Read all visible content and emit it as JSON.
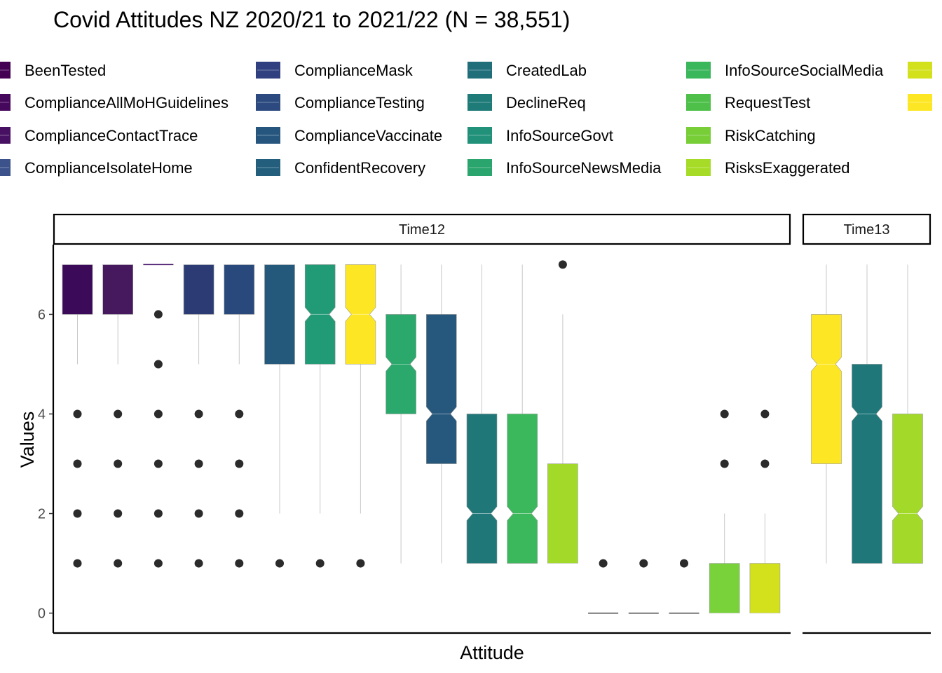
{
  "chart_data": {
    "type": "boxplot",
    "title": "Covid Attitudes NZ 2020/21 to 2021/22 (N = 38,551)",
    "xlabel": "Attitude",
    "ylabel": "Values",
    "ylim": [
      -0.4,
      7.4
    ],
    "yticks": [
      0,
      2,
      4,
      6
    ],
    "legend_position": "top",
    "legend": [
      {
        "name": "BeenTested",
        "color": "#440154"
      },
      {
        "name": "ComplianceAllMoHGuidelines",
        "color": "#46085c"
      },
      {
        "name": "ComplianceContactTrace",
        "color": "#471063"
      },
      {
        "name": "ComplianceIsolateHome",
        "color": "#3b528b"
      },
      {
        "name": "ComplianceMask",
        "color": "#2f3f7f"
      },
      {
        "name": "ComplianceTesting",
        "color": "#2c4a80"
      },
      {
        "name": "ComplianceVaccinate",
        "color": "#26567e"
      },
      {
        "name": "ConfidentRecovery",
        "color": "#235f7d"
      },
      {
        "name": "CreatedLab",
        "color": "#1f6e7a"
      },
      {
        "name": "DeclineReq",
        "color": "#1e7b78"
      },
      {
        "name": "InfoSourceGovt",
        "color": "#21917a"
      },
      {
        "name": "InfoSourceNewsMedia",
        "color": "#2aa56d"
      },
      {
        "name": "InfoSourceSocialMedia",
        "color": "#3ab65b"
      },
      {
        "name": "RequestTest",
        "color": "#4ec04a"
      },
      {
        "name": "RiskCatching",
        "color": "#77ce37"
      },
      {
        "name": "RisksExaggerated",
        "color": "#a6dc27"
      },
      {
        "name": "",
        "color": "#d2e11c"
      },
      {
        "name": "",
        "color": "#fde725"
      }
    ],
    "panels": [
      {
        "label": "Time12",
        "boxes": [
          {
            "color": "#3b0a58",
            "q1": 6,
            "median": 7,
            "q3": 7,
            "lower": 5,
            "upper": 7,
            "outliers": [
              4,
              3,
              2,
              1
            ]
          },
          {
            "color": "#46195f",
            "q1": 6,
            "median": 7,
            "q3": 7,
            "lower": 5,
            "upper": 7,
            "outliers": [
              4,
              3,
              2,
              1
            ]
          },
          {
            "color": "#47156b",
            "q1": 7,
            "median": 7,
            "q3": 7,
            "lower": 7,
            "upper": 7,
            "outliers": [
              6,
              5,
              4,
              3,
              2,
              1
            ]
          },
          {
            "color": "#2d3b75",
            "q1": 6,
            "median": 7,
            "q3": 7,
            "lower": 5,
            "upper": 7,
            "outliers": [
              4,
              3,
              2,
              1
            ]
          },
          {
            "color": "#29497d",
            "q1": 6,
            "median": 7,
            "q3": 7,
            "lower": 5,
            "upper": 7,
            "outliers": [
              4,
              3,
              2,
              1
            ]
          },
          {
            "color": "#24597b",
            "q1": 5,
            "median": 7,
            "q3": 7,
            "lower": 2,
            "upper": 7,
            "outliers": [
              1
            ]
          },
          {
            "color": "#219b75",
            "q1": 5,
            "median": 6,
            "q3": 7,
            "lower": 2,
            "upper": 7,
            "outliers": [
              1
            ]
          },
          {
            "color": "#fde725",
            "q1": 5,
            "median": 6,
            "q3": 7,
            "lower": 2,
            "upper": 7,
            "outliers": [
              1
            ]
          },
          {
            "color": "#2ba96c",
            "q1": 4,
            "median": 5,
            "q3": 6,
            "lower": 1,
            "upper": 7,
            "outliers": []
          },
          {
            "color": "#26577c",
            "q1": 3,
            "median": 4,
            "q3": 6,
            "lower": 1,
            "upper": 7,
            "outliers": []
          },
          {
            "color": "#1f7778",
            "q1": 1,
            "median": 2,
            "q3": 4,
            "lower": 1,
            "upper": 7,
            "outliers": []
          },
          {
            "color": "#3bb85c",
            "q1": 1,
            "median": 2,
            "q3": 4,
            "lower": 1,
            "upper": 7,
            "outliers": []
          },
          {
            "color": "#a3da2a",
            "q1": 1,
            "median": 1,
            "q3": 3,
            "lower": 1,
            "upper": 6,
            "outliers": [
              7
            ]
          },
          {
            "color": "#444444",
            "q1": 0,
            "median": 0,
            "q3": 0,
            "lower": 0,
            "upper": 0,
            "outliers": [
              1
            ]
          },
          {
            "color": "#444444",
            "q1": 0,
            "median": 0,
            "q3": 0,
            "lower": 0,
            "upper": 0,
            "outliers": [
              1
            ]
          },
          {
            "color": "#444444",
            "q1": 0,
            "median": 0,
            "q3": 0,
            "lower": 0,
            "upper": 0,
            "outliers": [
              1
            ]
          },
          {
            "color": "#7ad23b",
            "q1": 0,
            "median": 0,
            "q3": 1,
            "lower": 0,
            "upper": 2,
            "outliers": [
              4,
              3
            ]
          },
          {
            "color": "#d2e11c",
            "q1": 0,
            "median": 0,
            "q3": 1,
            "lower": 0,
            "upper": 2,
            "outliers": [
              4,
              3
            ]
          }
        ]
      },
      {
        "label": "Time13",
        "boxes": [
          {
            "color": "#fde725",
            "q1": 3,
            "median": 5,
            "q3": 6,
            "lower": 1,
            "upper": 7,
            "outliers": []
          },
          {
            "color": "#1f777a",
            "q1": 1,
            "median": 4,
            "q3": 5,
            "lower": 1,
            "upper": 7,
            "outliers": []
          },
          {
            "color": "#a3da2a",
            "q1": 1,
            "median": 2,
            "q3": 4,
            "lower": 1,
            "upper": 7,
            "outliers": []
          }
        ]
      }
    ]
  }
}
